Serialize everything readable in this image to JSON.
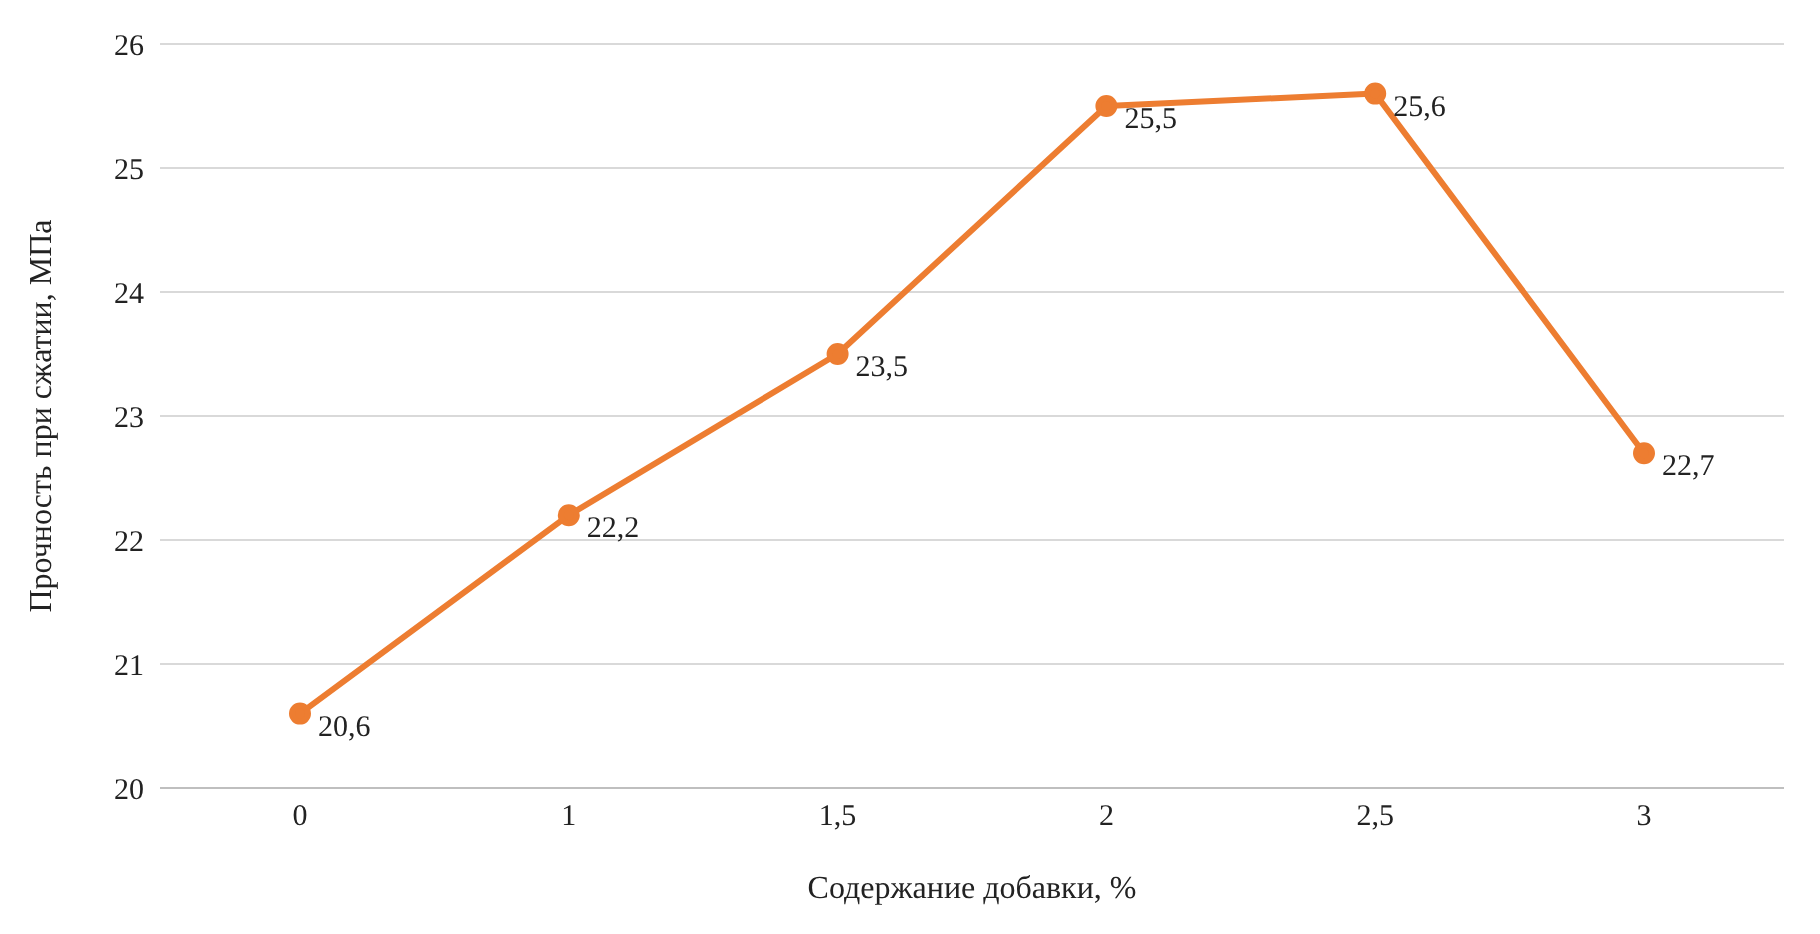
{
  "chart_data": {
    "type": "line",
    "xlabel": "Содержание добавки, %",
    "ylabel": "Прочность при сжатии, МПа",
    "categories": [
      "0",
      "1",
      "1,5",
      "2",
      "2,5",
      "3"
    ],
    "series": [
      {
        "color": "#ed7d31",
        "values": [
          20.6,
          22.2,
          23.5,
          25.5,
          25.6,
          22.7
        ],
        "value_labels": [
          "20,6",
          "22,2",
          "23,5",
          "25,5",
          "25,6",
          "22,7"
        ]
      }
    ],
    "ylim": [
      20,
      26
    ],
    "yticks": [
      20,
      21,
      22,
      23,
      24,
      25,
      26
    ],
    "grid": "y",
    "marker": "circle",
    "line_style": "solid"
  }
}
